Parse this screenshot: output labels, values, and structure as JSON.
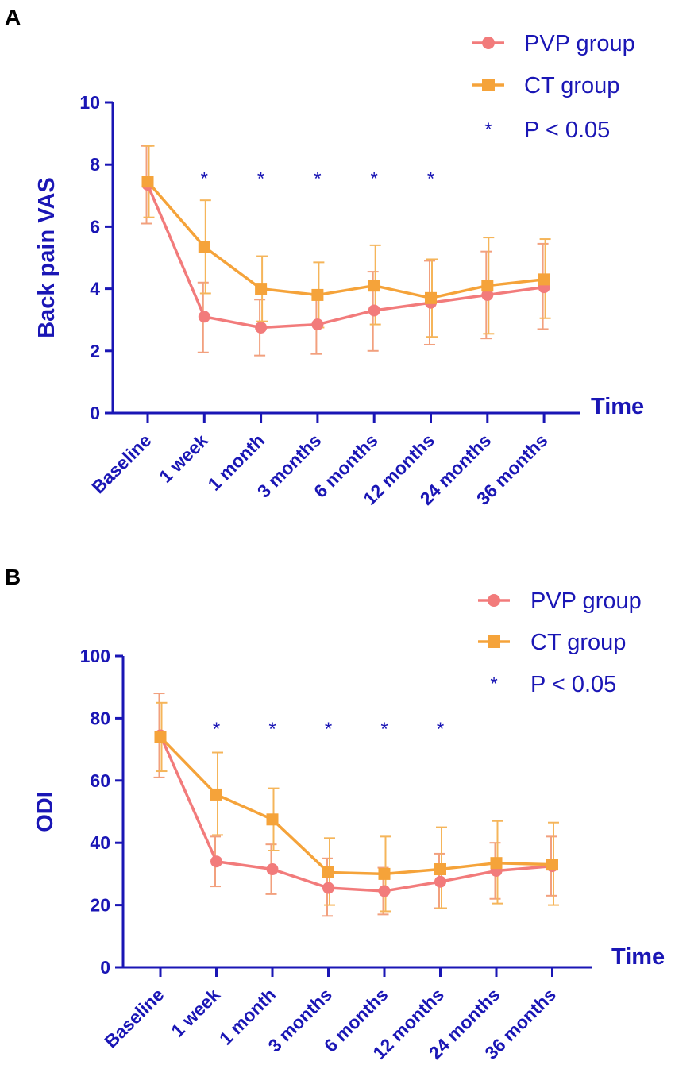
{
  "colors": {
    "axis": "#1a16b5",
    "pvp": "#f27b7b",
    "ct": "#f5a33a",
    "err_pvp": "#f2a07e",
    "err_ct": "#f5b55a"
  },
  "chart_data": [
    {
      "panel": "A",
      "type": "line",
      "xlabel": "Time",
      "ylabel": "Back pain VAS",
      "ylim": [
        0,
        10
      ],
      "yticks": [
        "0",
        "2",
        "4",
        "6",
        "8",
        "10"
      ],
      "ytick_values": [
        0,
        2,
        4,
        6,
        8,
        10
      ],
      "categories": [
        "Baseline",
        "1 week",
        "1 month",
        "3 months",
        "6 months",
        "12 months",
        "24 months",
        "36 months"
      ],
      "legend": [
        {
          "label": "PVP group",
          "marker": "circle",
          "series": "pvp"
        },
        {
          "label": "CT group",
          "marker": "square",
          "series": "ct"
        },
        {
          "label": "P < 0.05",
          "marker": "*",
          "series": "sig"
        }
      ],
      "series": [
        {
          "name": "PVP group",
          "key": "pvp",
          "marker": "circle",
          "values": [
            7.35,
            3.1,
            2.75,
            2.85,
            3.3,
            3.55,
            3.8,
            4.05
          ],
          "err_low": [
            6.1,
            1.95,
            1.85,
            1.9,
            2.0,
            2.2,
            2.4,
            2.7
          ],
          "err_high": [
            8.6,
            4.2,
            3.65,
            3.8,
            4.55,
            4.9,
            5.2,
            5.45
          ]
        },
        {
          "name": "CT group",
          "key": "ct",
          "marker": "square",
          "values": [
            7.45,
            5.35,
            4.0,
            3.8,
            4.1,
            3.7,
            4.1,
            4.3
          ],
          "err_low": [
            6.3,
            3.85,
            2.95,
            2.75,
            2.85,
            2.45,
            2.55,
            3.05
          ],
          "err_high": [
            8.6,
            6.85,
            5.05,
            4.85,
            5.4,
            4.95,
            5.65,
            5.6
          ]
        }
      ],
      "significance": {
        "symbol": "*",
        "categories": [
          "1 week",
          "1 month",
          "3 months",
          "6 months",
          "12 months"
        ],
        "y": 7.7
      }
    },
    {
      "panel": "B",
      "type": "line",
      "xlabel": "Time",
      "ylabel": "ODI",
      "ylim": [
        0,
        100
      ],
      "yticks": [
        "0",
        "20",
        "40",
        "60",
        "80",
        "100"
      ],
      "ytick_values": [
        0,
        20,
        40,
        60,
        80,
        100
      ],
      "categories": [
        "Baseline",
        "1 week",
        "1 month",
        "3 months",
        "6 months",
        "12 months",
        "24 months",
        "36 months"
      ],
      "legend": [
        {
          "label": "PVP group",
          "marker": "circle",
          "series": "pvp"
        },
        {
          "label": "CT group",
          "marker": "square",
          "series": "ct"
        },
        {
          "label": "P < 0.05",
          "marker": "*",
          "series": "sig"
        }
      ],
      "series": [
        {
          "name": "PVP group",
          "key": "pvp",
          "marker": "circle",
          "values": [
            74.5,
            34.0,
            31.5,
            25.5,
            24.5,
            27.5,
            31.0,
            32.5
          ],
          "err_low": [
            61.0,
            26.0,
            23.5,
            16.5,
            17.0,
            19.0,
            22.0,
            23.0
          ],
          "err_high": [
            88.0,
            42.0,
            39.5,
            35.0,
            32.0,
            36.5,
            40.0,
            42.0
          ]
        },
        {
          "name": "CT group",
          "key": "ct",
          "marker": "square",
          "values": [
            74.0,
            55.5,
            47.5,
            30.5,
            30.0,
            31.5,
            33.5,
            33.0
          ],
          "err_low": [
            63.0,
            42.5,
            37.5,
            20.0,
            18.0,
            19.0,
            20.5,
            20.0
          ],
          "err_high": [
            85.0,
            69.0,
            57.5,
            41.5,
            42.0,
            45.0,
            47.0,
            46.5
          ]
        }
      ],
      "significance": {
        "symbol": "*",
        "categories": [
          "1 week",
          "1 month",
          "3 months",
          "6 months",
          "12 months"
        ],
        "y": 78
      }
    }
  ]
}
